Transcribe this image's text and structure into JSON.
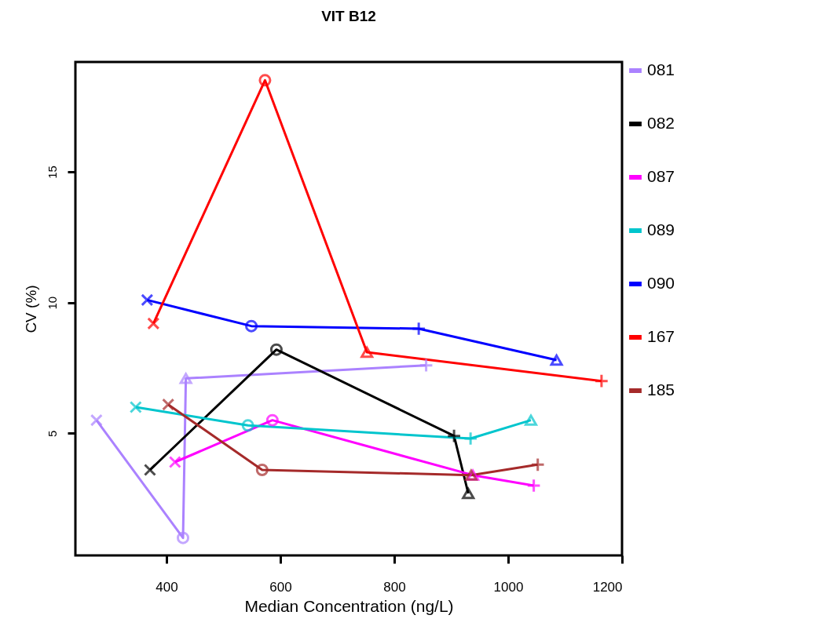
{
  "chart_data": {
    "type": "line",
    "title": "VIT B12",
    "xlabel": "Median Concentration  (ng/L)",
    "ylabel": "CV (%)",
    "xlim": [
      240,
      1200
    ],
    "xticks": [
      400,
      600,
      800,
      1000,
      1200
    ],
    "ylim": [
      0.33,
      19.2
    ],
    "yticks": [
      5,
      10,
      15
    ],
    "grid": false,
    "legend": "top right",
    "line_style": "solid",
    "series": [
      {
        "name": "081",
        "color": "#ab82ff",
        "x": [
          277,
          429,
          434,
          856
        ],
        "values": [
          5.5,
          1.0,
          7.1,
          7.6
        ]
      },
      {
        "name": "082",
        "color": "#000000",
        "x": [
          371,
          593,
          905,
          930
        ],
        "values": [
          3.6,
          8.2,
          4.9,
          2.7
        ]
      },
      {
        "name": "087",
        "color": "#ff00ff",
        "x": [
          415,
          586,
          938,
          1045
        ],
        "values": [
          3.9,
          5.5,
          3.4,
          3.0
        ]
      },
      {
        "name": "089",
        "color": "#00c5cd",
        "x": [
          346,
          543,
          934,
          1040
        ],
        "values": [
          6.0,
          5.3,
          4.8,
          5.5
        ]
      },
      {
        "name": "090",
        "color": "#0000ff",
        "x": [
          366,
          549,
          843,
          1085
        ],
        "values": [
          10.1,
          9.1,
          9.0,
          7.8
        ]
      },
      {
        "name": "167",
        "color": "#ff0000",
        "x": [
          377,
          573,
          752,
          1164
        ],
        "values": [
          9.2,
          18.5,
          8.1,
          7.0
        ]
      },
      {
        "name": "185",
        "color": "#a52a2a",
        "x": [
          403,
          568,
          935,
          1052
        ],
        "values": [
          6.1,
          3.6,
          3.4,
          3.8
        ]
      },
      {
        "type": "scatter",
        "marker": "cross",
        "x": [
          277,
          371,
          415,
          346,
          366,
          377,
          403
        ],
        "values": [
          5.5,
          3.6,
          3.9,
          6.0,
          10.1,
          9.2,
          6.1
        ],
        "colors": [
          "#ab82ff",
          "#000000",
          "#ff00ff",
          "#00c5cd",
          "#0000ff",
          "#ff0000",
          "#a52a2a"
        ]
      },
      {
        "type": "scatter",
        "marker": "plus",
        "x": [
          856,
          905,
          1045,
          934,
          843,
          1164,
          1052
        ],
        "values": [
          7.6,
          4.9,
          3.0,
          4.8,
          9.0,
          7.0,
          3.8
        ],
        "colors": [
          "#ab82ff",
          "#000000",
          "#ff00ff",
          "#00c5cd",
          "#0000ff",
          "#ff0000",
          "#a52a2a"
        ]
      },
      {
        "type": "scatter",
        "marker": "triangle",
        "x": [
          434,
          930,
          938,
          1040,
          1085,
          752,
          935
        ],
        "values": [
          7.1,
          2.7,
          3.4,
          5.5,
          7.8,
          8.1,
          3.4
        ],
        "colors": [
          "#ab82ff",
          "#000000",
          "#ff00ff",
          "#00c5cd",
          "#0000ff",
          "#ff0000",
          "#a52a2a"
        ]
      },
      {
        "type": "scatter",
        "marker": "circle",
        "x": [
          429,
          593,
          586,
          543,
          549,
          573,
          568
        ],
        "values": [
          1.0,
          8.2,
          5.5,
          5.3,
          9.1,
          18.5,
          3.6
        ],
        "colors": [
          "#ab82ff",
          "#000000",
          "#ff00ff",
          "#00c5cd",
          "#0000ff",
          "#ff0000",
          "#a52a2a"
        ]
      }
    ]
  }
}
